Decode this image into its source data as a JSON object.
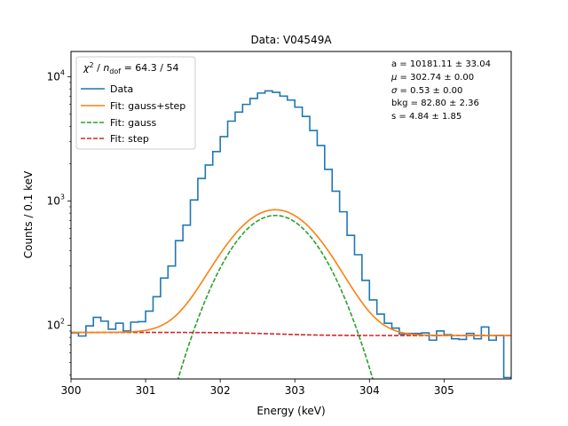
{
  "chart_data": {
    "type": "line",
    "title": "Data: V04549A",
    "xlabel": "Energy (keV)",
    "ylabel": "Counts / 0.1 keV",
    "xlim": [
      300.0,
      305.9
    ],
    "ylim": [
      37,
      16000
    ],
    "yscale": "log",
    "grid": false,
    "legend_position": "top-left",
    "x_ticks": [
      {
        "value": 300,
        "label": "300"
      },
      {
        "value": 301,
        "label": "301"
      },
      {
        "value": 302,
        "label": "302"
      },
      {
        "value": 303,
        "label": "303"
      },
      {
        "value": 304,
        "label": "304"
      },
      {
        "value": 305,
        "label": "305"
      }
    ],
    "y_ticks": [
      {
        "value": 100,
        "base": "10",
        "exp": "2"
      },
      {
        "value": 1000,
        "base": "10",
        "exp": "3"
      },
      {
        "value": 10000,
        "base": "10",
        "exp": "4"
      }
    ],
    "legend": {
      "header": {
        "chi": "χ",
        "sup": "2",
        "slash": " / ",
        "n": "n",
        "sub": "dof",
        "value": " = 64.3 / 54"
      },
      "entries": [
        {
          "label": "Data",
          "color": "#1f77b4",
          "dash": false
        },
        {
          "label": "Fit: gauss+step",
          "color": "#ff7f0e",
          "dash": false
        },
        {
          "label": "Fit: gauss",
          "color": "#2ca02c",
          "dash": true
        },
        {
          "label": "Fit: step",
          "color": "#d62728",
          "dash": true
        }
      ]
    },
    "annotations": [
      {
        "name": "a",
        "text": "a = 10181.11 ± 33.04"
      },
      {
        "name": "μ",
        "text": " = 302.74 ± 0.00",
        "italic_prefix": "μ"
      },
      {
        "name": "σ",
        "text": " = 0.53 ± 0.00",
        "italic_prefix": "σ"
      },
      {
        "name": "bkg",
        "text": "bkg = 82.80 ± 2.36"
      },
      {
        "name": "s",
        "text": "s = 4.84 ± 1.85"
      }
    ],
    "fit_params": {
      "a": 10181.11,
      "mu": 302.74,
      "sigma": 0.53,
      "bkg": 82.8,
      "s": 4.84,
      "bin_width": 0.1
    },
    "series": [
      {
        "name": "Data",
        "kind": "step",
        "color": "#1f77b4",
        "bin_width": 0.1,
        "bin_starts": [
          300.0,
          300.1,
          300.2,
          300.3,
          300.4,
          300.5,
          300.6,
          300.7,
          300.8,
          300.9,
          301.0,
          301.1,
          301.2,
          301.3,
          301.4,
          301.5,
          301.6,
          301.7,
          301.8,
          301.9,
          302.0,
          302.1,
          302.2,
          302.3,
          302.4,
          302.5,
          302.6,
          302.7,
          302.8,
          302.9,
          303.0,
          303.1,
          303.2,
          303.3,
          303.4,
          303.5,
          303.6,
          303.7,
          303.8,
          303.9,
          304.0,
          304.1,
          304.2,
          304.3,
          304.4,
          304.5,
          304.6,
          304.7,
          304.8,
          304.9,
          305.0,
          305.1,
          305.2,
          305.3,
          305.4,
          305.5,
          305.6,
          305.7,
          305.8
        ],
        "values": [
          87,
          82,
          99,
          116,
          108,
          93,
          104,
          90,
          106,
          107,
          130,
          170,
          240,
          300,
          480,
          640,
          1020,
          1520,
          1950,
          2500,
          3300,
          4400,
          5200,
          6000,
          6700,
          7400,
          7700,
          7500,
          7000,
          6500,
          5700,
          4800,
          3700,
          2800,
          1800,
          1200,
          820,
          530,
          370,
          230,
          160,
          123,
          104,
          95,
          85,
          86,
          86,
          87,
          76,
          90,
          84,
          78,
          77,
          86,
          78,
          97,
          76,
          83,
          38
        ]
      },
      {
        "name": "Fit: gauss+step",
        "kind": "line",
        "color": "#ff7f0e",
        "dash": false,
        "function": "gauss+step",
        "x_range": [
          300.0,
          305.9
        ]
      },
      {
        "name": "Fit: gauss",
        "kind": "line",
        "color": "#2ca02c",
        "dash": true,
        "function": "gauss",
        "x_range": [
          301.0,
          304.5
        ]
      },
      {
        "name": "Fit: step",
        "kind": "line",
        "color": "#d62728",
        "dash": true,
        "function": "step",
        "x_range": [
          300.0,
          305.9
        ]
      }
    ]
  }
}
